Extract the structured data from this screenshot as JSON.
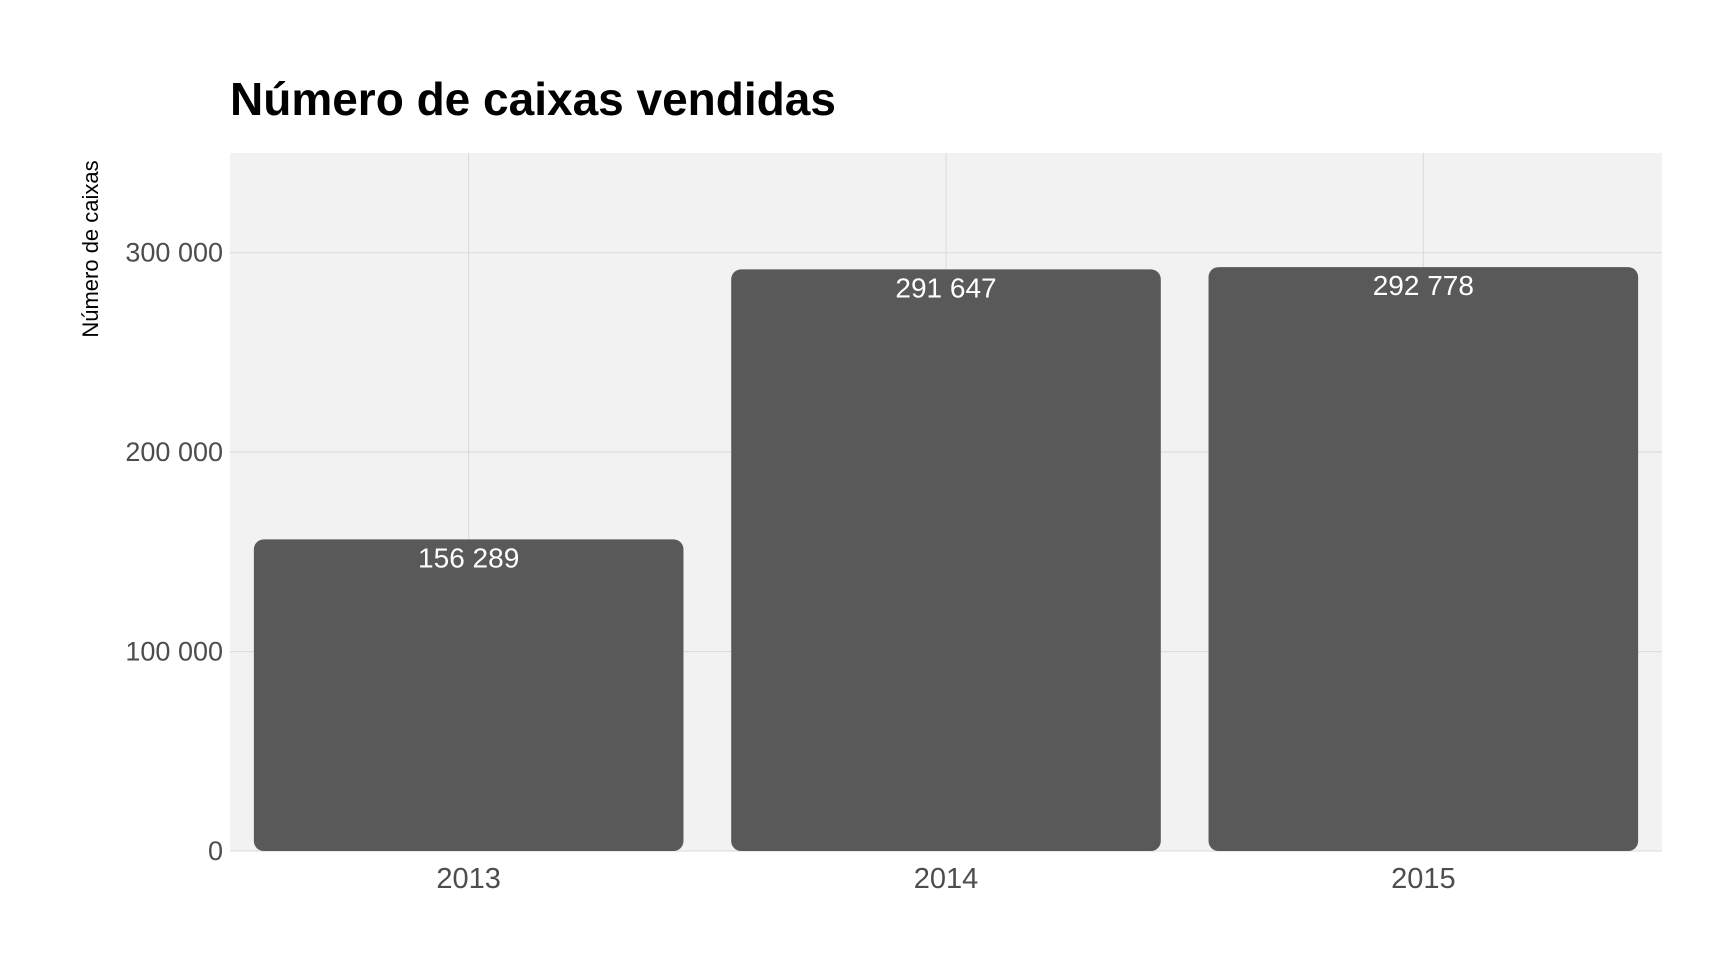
{
  "chart_data": {
    "type": "bar",
    "title": "Número de caixas vendidas",
    "xlabel": "",
    "ylabel": "Número de caixas",
    "categories": [
      "2013",
      "2014",
      "2015"
    ],
    "values": [
      156289,
      291647,
      292778
    ],
    "value_labels": [
      "156 289",
      "291 647",
      "292 778"
    ],
    "y_ticks": [
      0,
      100000,
      200000,
      300000
    ],
    "y_tick_labels": [
      "0",
      "100 000",
      "200 000",
      "300 000"
    ],
    "ylim": [
      0,
      350000
    ],
    "grid": true,
    "legend": "none",
    "colors": {
      "bar": "#595959",
      "panel_background": "#f2f2f2",
      "grid": "#d9d9d9",
      "bar_label": "#ffffff",
      "tick_label": "#4d4d4d",
      "title": "#000000"
    }
  }
}
